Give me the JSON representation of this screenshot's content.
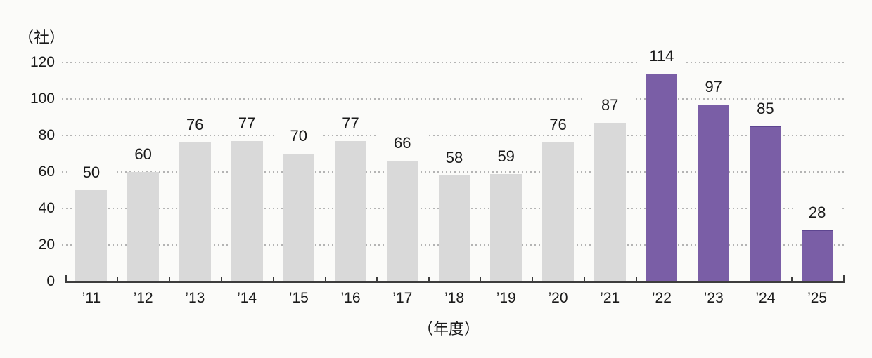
{
  "chart_data": {
    "type": "bar",
    "title": "",
    "y_axis_unit_label": "（社）",
    "x_axis_title": "（年度）",
    "categories": [
      "’11",
      "’12",
      "’13",
      "’14",
      "’15",
      "’16",
      "’17",
      "’18",
      "’19",
      "’20",
      "’21",
      "’22",
      "’23",
      "’24",
      "’25"
    ],
    "values": [
      50,
      60,
      76,
      77,
      70,
      77,
      66,
      58,
      59,
      76,
      87,
      114,
      97,
      85,
      28
    ],
    "y_ticks": [
      0,
      20,
      40,
      60,
      80,
      100,
      120
    ],
    "ylim": [
      0,
      120
    ],
    "grid": "horizontal-dotted",
    "legend": "none",
    "highlight_start_index": 11,
    "colors": {
      "bar_default": "#d9d9d9",
      "bar_highlight": "#7a5ea6",
      "bar_highlight_border": "#5d4590",
      "axis": "#3d3d3d",
      "gridline": "#a8a8a8",
      "text": "#1a1a1a",
      "background": "#fbfbf9"
    }
  }
}
